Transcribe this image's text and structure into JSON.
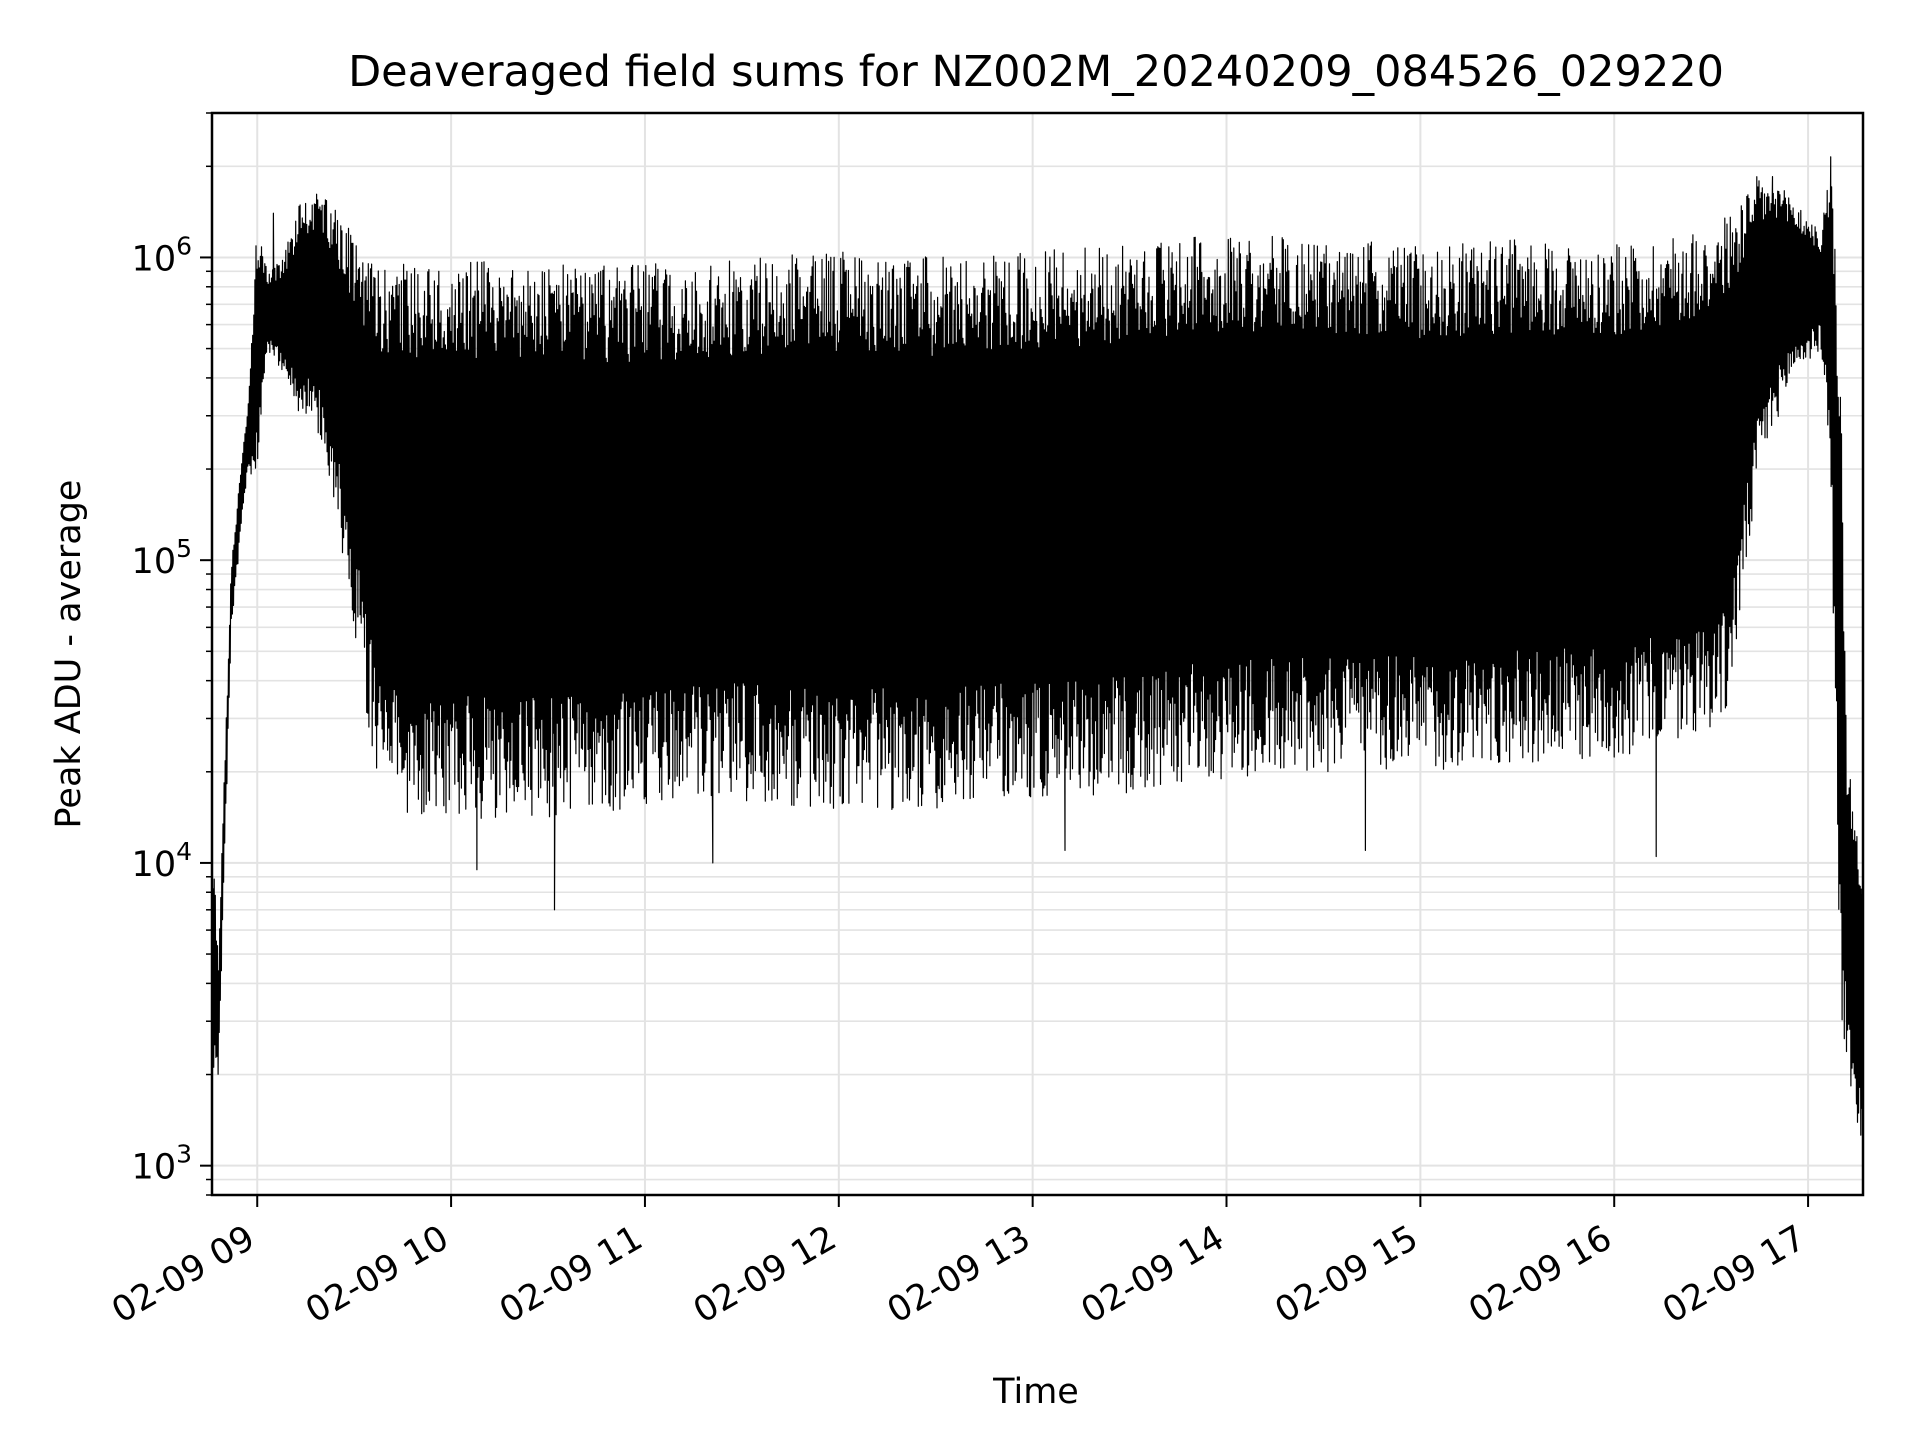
{
  "chart_data": {
    "type": "line",
    "title": "Deaveraged field sums for NZ002M_20240209_084526_029220",
    "xlabel": "Time",
    "ylabel": "Peak ADU - average",
    "yscale": "log",
    "grid": true,
    "legend": "none",
    "line_color": "#000000",
    "xlim": [
      "2024-02-09 08:46",
      "2024-02-09 17:17"
    ],
    "ylim": [
      800,
      3000000
    ],
    "x_ticks": [
      "02-09 09",
      "02-09 10",
      "02-09 11",
      "02-09 12",
      "02-09 13",
      "02-09 14",
      "02-09 15",
      "02-09 16",
      "02-09 17"
    ],
    "y_ticks": [
      {
        "value": 1000,
        "base": "10",
        "exp": "3"
      },
      {
        "value": 10000,
        "base": "10",
        "exp": "4"
      },
      {
        "value": 100000,
        "base": "10",
        "exp": "5"
      },
      {
        "value": 1000000,
        "base": "10",
        "exp": "6"
      }
    ],
    "envelope": {
      "time": [
        "2024-02-09 08:46",
        "2024-02-09 08:48",
        "2024-02-09 08:52",
        "2024-02-09 08:57",
        "2024-02-09 09:00",
        "2024-02-09 09:03",
        "2024-02-09 09:08",
        "2024-02-09 09:13",
        "2024-02-09 09:19",
        "2024-02-09 09:24",
        "2024-02-09 09:30",
        "2024-02-09 09:36",
        "2024-02-09 09:40",
        "2024-02-09 09:45",
        "2024-02-09 09:50",
        "2024-02-09 10:00",
        "2024-02-09 10:30",
        "2024-02-09 11:00",
        "2024-02-09 11:30",
        "2024-02-09 12:00",
        "2024-02-09 12:30",
        "2024-02-09 13:00",
        "2024-02-09 13:30",
        "2024-02-09 14:00",
        "2024-02-09 14:30",
        "2024-02-09 15:00",
        "2024-02-09 15:30",
        "2024-02-09 16:00",
        "2024-02-09 16:20",
        "2024-02-09 16:35",
        "2024-02-09 16:45",
        "2024-02-09 16:55",
        "2024-02-09 17:04",
        "2024-02-09 17:07",
        "2024-02-09 17:10",
        "2024-02-09 17:12",
        "2024-02-09 17:17"
      ],
      "upper": [
        13000,
        5000,
        100000,
        320000,
        1300000,
        900000,
        1000000,
        1500000,
        1700000,
        1500000,
        1200000,
        1000000,
        1000000,
        1000000,
        950000,
        1000000,
        950000,
        950000,
        1000000,
        1050000,
        1000000,
        1050000,
        1100000,
        1200000,
        1150000,
        1100000,
        1150000,
        1100000,
        1200000,
        1400000,
        1900000,
        1600000,
        1200000,
        2100000,
        500000,
        25000,
        8000
      ],
      "lower": [
        1900,
        2000,
        60000,
        200000,
        180000,
        500000,
        400000,
        300000,
        250000,
        150000,
        60000,
        22000,
        16000,
        15000,
        14000,
        14000,
        14000,
        15000,
        16000,
        15000,
        15000,
        16000,
        17000,
        19000,
        20000,
        20000,
        21000,
        22000,
        25000,
        30000,
        200000,
        400000,
        500000,
        200000,
        3000,
        2000,
        1100
      ]
    },
    "notable_points": [
      {
        "time": "2024-02-09 10:32",
        "value": 7000
      },
      {
        "time": "2024-02-09 10:08",
        "value": 9500
      },
      {
        "time": "2024-02-09 11:21",
        "value": 10000
      },
      {
        "time": "2024-02-09 13:10",
        "value": 11000
      },
      {
        "time": "2024-02-09 14:43",
        "value": 11000
      },
      {
        "time": "2024-02-09 16:13",
        "value": 10500
      },
      {
        "time": "2024-02-09 09:05",
        "value": 1400000
      },
      {
        "time": "2024-02-09 16:49",
        "value": 1850000
      },
      {
        "time": "2024-02-09 17:07",
        "value": 2150000
      },
      {
        "time": "2024-02-09 17:15",
        "value": 1600
      },
      {
        "time": "2024-02-09 17:17",
        "value": 1100
      }
    ]
  }
}
